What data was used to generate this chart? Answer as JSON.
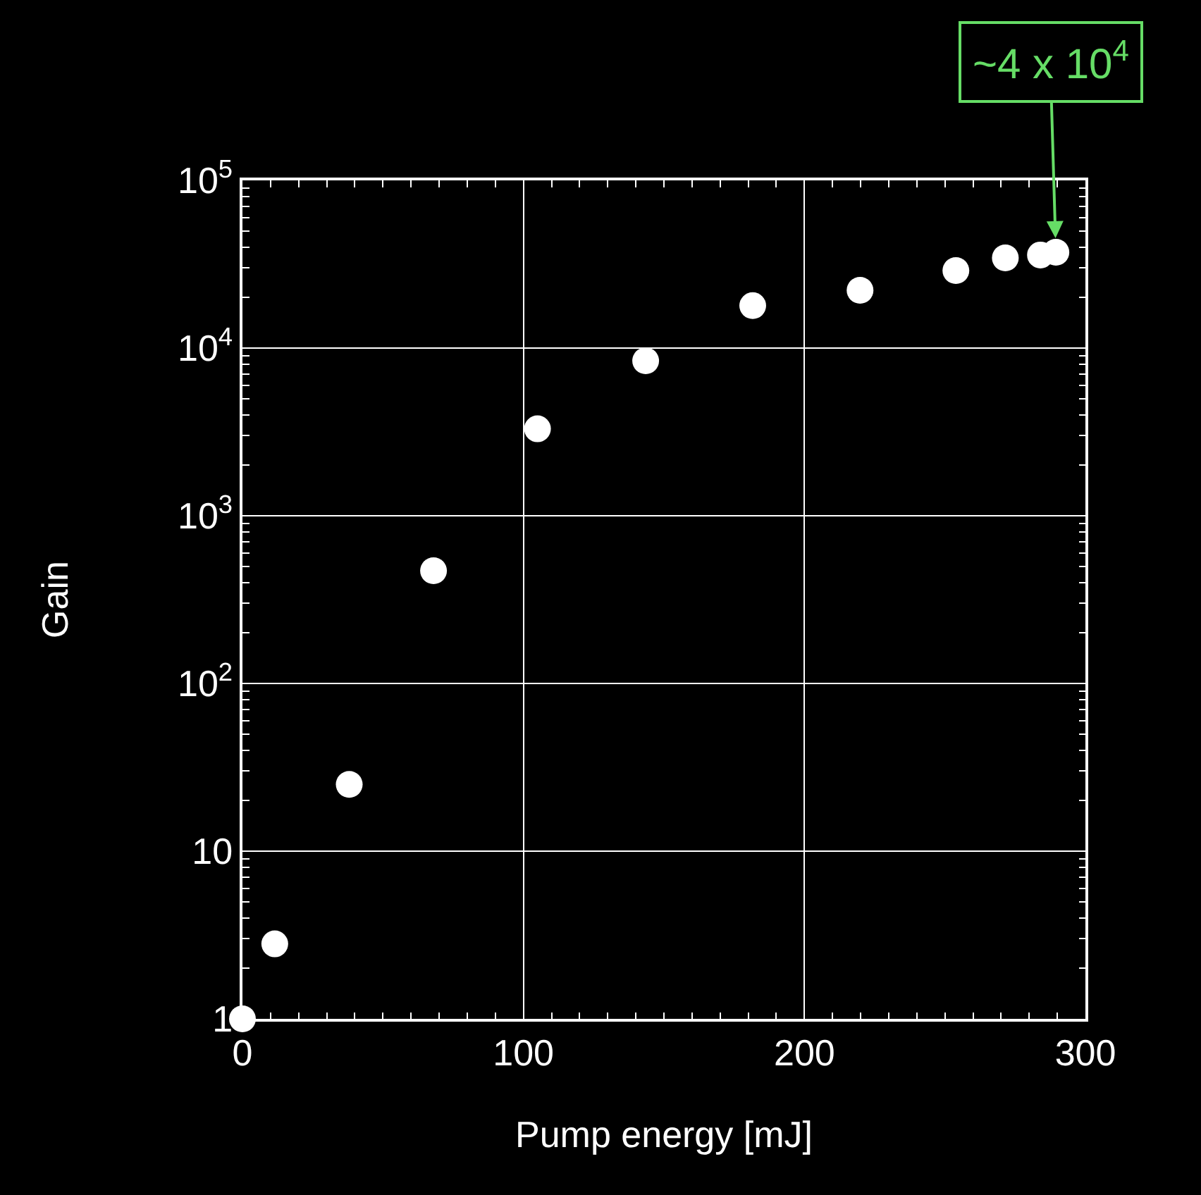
{
  "chart_data": {
    "type": "scatter",
    "xlabel": "Pump energy [mJ]",
    "ylabel": "Gain",
    "x": [
      0,
      11.5,
      38,
      68,
      105,
      143.5,
      181.6,
      219.8,
      253.9,
      271.5,
      284,
      289.5
    ],
    "series": [
      {
        "color": "#ffffff",
        "values": [
          1,
          2.8,
          25,
          470,
          3300,
          8400,
          17900,
          22100,
          29000,
          34500,
          35900,
          37300
        ]
      }
    ],
    "log": "y",
    "xlim": [
      0,
      300
    ],
    "xticks": [
      0,
      100,
      200,
      300
    ],
    "ylim": [
      1,
      100000
    ],
    "yticks": [
      {
        "value": 1,
        "label": "1"
      },
      {
        "value": 10,
        "label": "10"
      },
      {
        "value": 100,
        "label": "10$^{2}$"
      },
      {
        "value": 1000,
        "label": "10$^{3}$"
      },
      {
        "value": 10000,
        "label": "10$^{4}$"
      },
      {
        "value": 100000,
        "label": "10$^{5}$"
      }
    ],
    "grid": true,
    "marker": "circle",
    "legend": false,
    "annotations": [
      {
        "text": "~4 x 10$^{4}$",
        "x": 289.5,
        "y": 37300
      }
    ]
  }
}
